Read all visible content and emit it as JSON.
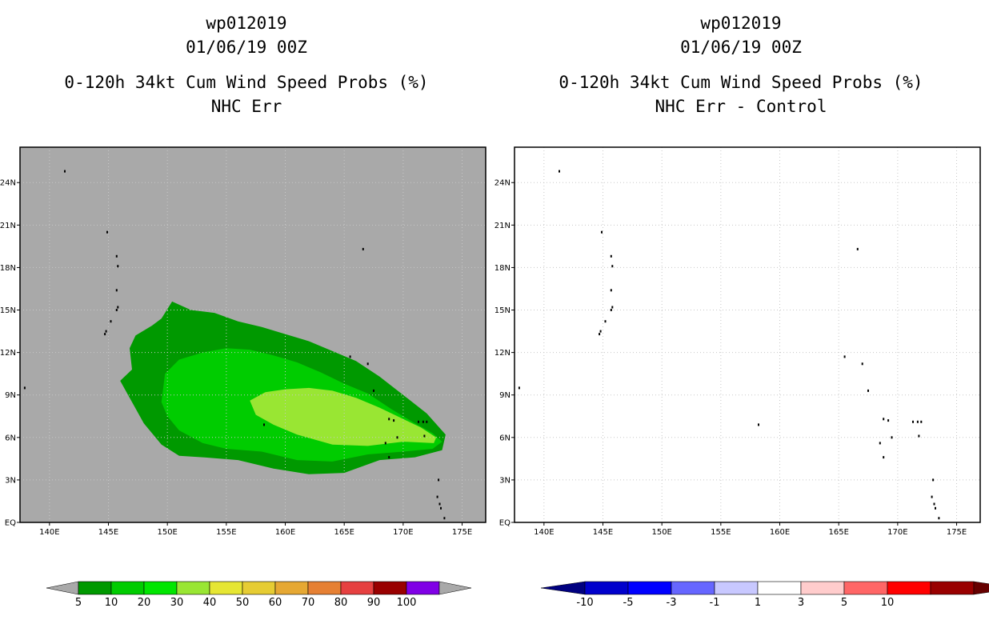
{
  "colors": {
    "ocean_left": "#a9a9a9",
    "ocean_right": "#ffffff",
    "prob_5": "#009900",
    "prob_10": "#00cc00",
    "prob_20": "#99e633"
  },
  "chart_data": [
    {
      "type": "contour-map",
      "title_lines": [
        "wp012019",
        "01/06/19 00Z",
        "0-120h 34kt Cum Wind Speed Probs (%)",
        "NHC Err"
      ],
      "xlim": [
        137.5,
        177.0
      ],
      "ylim": [
        0,
        26.5
      ],
      "x_ticks": [
        140,
        145,
        150,
        155,
        160,
        165,
        170,
        175
      ],
      "x_tick_labels": [
        "140E",
        "145E",
        "150E",
        "155E",
        "160E",
        "165E",
        "170E",
        "175E"
      ],
      "y_ticks": [
        0,
        3,
        6,
        9,
        12,
        15,
        18,
        21,
        24
      ],
      "y_tick_labels": [
        "EQ",
        "3N",
        "6N",
        "9N",
        "12N",
        "15N",
        "18N",
        "21N",
        "24N"
      ],
      "grid": true,
      "contour_levels": [
        {
          "min_pct": 5,
          "polygon_lonlat": [
            [
              146.0,
              10.0
            ],
            [
              147.0,
              10.8
            ],
            [
              146.8,
              12.3
            ],
            [
              147.3,
              13.2
            ],
            [
              148.7,
              13.9
            ],
            [
              149.5,
              14.4
            ],
            [
              150.4,
              15.6
            ],
            [
              152.0,
              15.0
            ],
            [
              154.0,
              14.8
            ],
            [
              156.0,
              14.2
            ],
            [
              158.0,
              13.8
            ],
            [
              160.0,
              13.3
            ],
            [
              162.0,
              12.8
            ],
            [
              164.0,
              12.1
            ],
            [
              166.0,
              11.4
            ],
            [
              168.0,
              10.3
            ],
            [
              170.0,
              9.0
            ],
            [
              172.0,
              7.7
            ],
            [
              173.6,
              6.2
            ],
            [
              173.3,
              5.1
            ],
            [
              171.0,
              4.6
            ],
            [
              168.0,
              4.4
            ],
            [
              165.0,
              3.5
            ],
            [
              162.0,
              3.4
            ],
            [
              159.0,
              3.8
            ],
            [
              156.0,
              4.4
            ],
            [
              153.0,
              4.6
            ],
            [
              151.0,
              4.7
            ],
            [
              149.5,
              5.5
            ],
            [
              148.0,
              7.0
            ],
            [
              147.0,
              8.5
            ]
          ]
        },
        {
          "min_pct": 10,
          "polygon_lonlat": [
            [
              149.5,
              8.5
            ],
            [
              149.8,
              10.5
            ],
            [
              151.0,
              11.5
            ],
            [
              153.0,
              12.0
            ],
            [
              155.0,
              12.3
            ],
            [
              157.0,
              12.2
            ],
            [
              159.0,
              11.8
            ],
            [
              161.0,
              11.3
            ],
            [
              163.0,
              10.6
            ],
            [
              165.0,
              9.8
            ],
            [
              167.0,
              9.1
            ],
            [
              169.0,
              8.0
            ],
            [
              171.0,
              7.0
            ],
            [
              172.5,
              6.3
            ],
            [
              173.3,
              5.7
            ],
            [
              172.5,
              5.2
            ],
            [
              170.0,
              5.0
            ],
            [
              167.0,
              4.8
            ],
            [
              164.0,
              4.3
            ],
            [
              161.0,
              4.4
            ],
            [
              158.0,
              5.0
            ],
            [
              155.0,
              5.2
            ],
            [
              153.0,
              5.6
            ],
            [
              151.0,
              6.5
            ],
            [
              150.0,
              7.5
            ]
          ]
        },
        {
          "min_pct": 20,
          "polygon_lonlat": [
            [
              157.0,
              8.6
            ],
            [
              158.3,
              9.2
            ],
            [
              160.0,
              9.4
            ],
            [
              162.0,
              9.5
            ],
            [
              164.0,
              9.3
            ],
            [
              166.0,
              8.8
            ],
            [
              168.0,
              8.1
            ],
            [
              170.0,
              7.3
            ],
            [
              171.5,
              6.7
            ],
            [
              172.8,
              6.0
            ],
            [
              172.6,
              5.6
            ],
            [
              170.0,
              5.7
            ],
            [
              167.0,
              5.4
            ],
            [
              164.0,
              5.5
            ],
            [
              161.0,
              6.2
            ],
            [
              159.0,
              6.9
            ],
            [
              157.5,
              7.6
            ]
          ]
        }
      ],
      "colorbar": {
        "labels": [
          "5",
          "10",
          "20",
          "30",
          "40",
          "50",
          "60",
          "70",
          "80",
          "90",
          "100"
        ],
        "colors": [
          "#009900",
          "#00cc00",
          "#00e600",
          "#99e633",
          "#e6e633",
          "#e6cc33",
          "#e6a833",
          "#e68033",
          "#e64040",
          "#990000",
          "#8000e6"
        ],
        "end_arrows": "#a9a9a9"
      }
    },
    {
      "type": "contour-map",
      "title_lines": [
        "wp012019",
        "01/06/19 00Z",
        "0-120h 34kt Cum Wind Speed Probs (%)",
        "NHC Err - Control"
      ],
      "xlim": [
        137.5,
        177.0
      ],
      "ylim": [
        0,
        26.5
      ],
      "x_ticks": [
        140,
        145,
        150,
        155,
        160,
        165,
        170,
        175
      ],
      "x_tick_labels": [
        "140E",
        "145E",
        "150E",
        "155E",
        "160E",
        "165E",
        "170E",
        "175E"
      ],
      "y_ticks": [
        0,
        3,
        6,
        9,
        12,
        15,
        18,
        21,
        24
      ],
      "y_tick_labels": [
        "EQ",
        "3N",
        "6N",
        "9N",
        "12N",
        "15N",
        "18N",
        "21N",
        "24N"
      ],
      "grid": true,
      "contour_levels": [],
      "colorbar": {
        "labels": [
          "-10",
          "-5",
          "-3",
          "-1",
          "1",
          "3",
          "5",
          "10"
        ],
        "colors": [
          "#0000cc",
          "#0000ff",
          "#6666ff",
          "#c8c8ff",
          "#ffffff",
          "#ffcccc",
          "#ff6666",
          "#ff0000",
          "#990000"
        ],
        "end_arrows": [
          "#000080",
          "#660000"
        ]
      }
    }
  ],
  "islands_lonlat": [
    [
      141.3,
      24.8
    ],
    [
      144.9,
      20.5
    ],
    [
      145.7,
      18.8
    ],
    [
      145.8,
      18.1
    ],
    [
      145.7,
      16.4
    ],
    [
      145.8,
      15.2
    ],
    [
      145.7,
      15.0
    ],
    [
      145.2,
      14.2
    ],
    [
      144.8,
      13.5
    ],
    [
      144.7,
      13.3
    ],
    [
      137.9,
      9.5
    ],
    [
      158.2,
      6.9
    ],
    [
      166.6,
      19.3
    ],
    [
      167.0,
      11.2
    ],
    [
      167.5,
      9.3
    ],
    [
      165.5,
      11.7
    ],
    [
      168.8,
      7.3
    ],
    [
      169.2,
      7.2
    ],
    [
      168.5,
      5.6
    ],
    [
      169.5,
      6.0
    ],
    [
      168.8,
      4.6
    ],
    [
      171.3,
      7.1
    ],
    [
      171.7,
      7.1
    ],
    [
      172.0,
      7.1
    ],
    [
      171.8,
      6.1
    ],
    [
      173.0,
      3.0
    ],
    [
      172.9,
      1.8
    ],
    [
      173.1,
      1.3
    ],
    [
      173.2,
      1.0
    ],
    [
      173.5,
      0.3
    ]
  ]
}
